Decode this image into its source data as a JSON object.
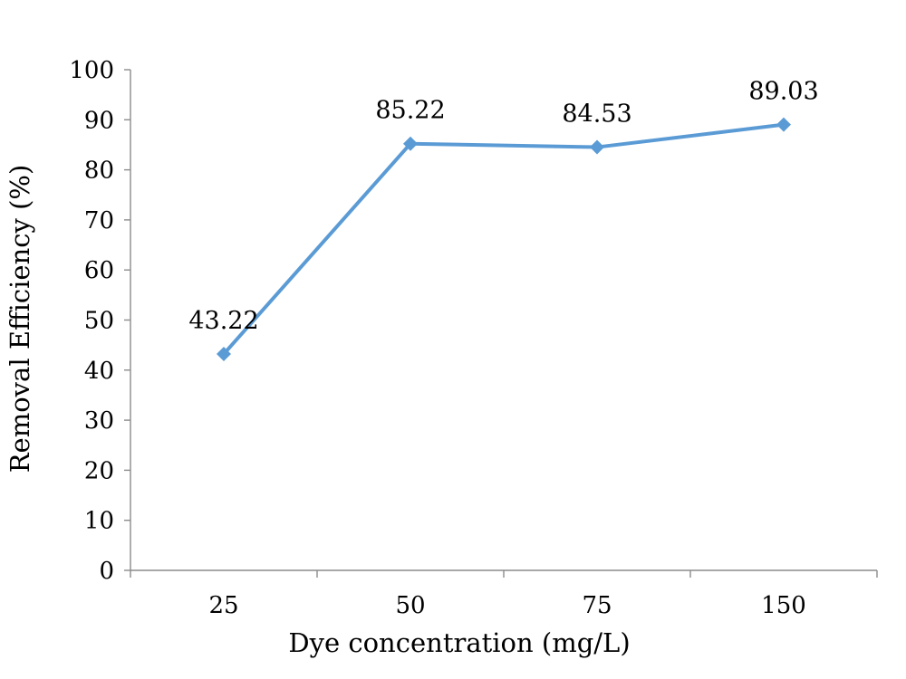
{
  "chart_data": {
    "type": "line",
    "categories": [
      "25",
      "50",
      "75",
      "150"
    ],
    "series": [
      {
        "values": [
          43.22,
          85.22,
          84.53,
          89.03
        ],
        "color": "#5b9bd5",
        "marker": "diamond",
        "data_labels": [
          "43.22",
          "85.22",
          "84.53",
          "89.03"
        ]
      }
    ],
    "xlabel": "Dye concentration (mg/L)",
    "ylabel": "Removal Efficiency (%)",
    "ylim": [
      0,
      100
    ],
    "yticks": [
      0,
      10,
      20,
      30,
      40,
      50,
      60,
      70,
      80,
      90,
      100
    ],
    "grid": false,
    "legend": "none"
  }
}
